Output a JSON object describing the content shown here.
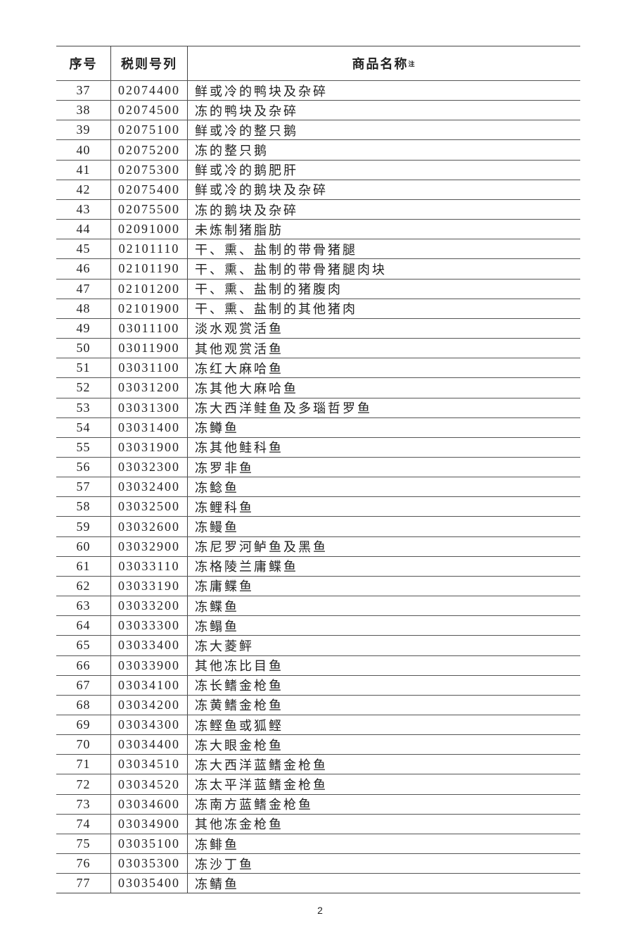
{
  "table": {
    "headers": {
      "index": "序号",
      "tariff_code": "税则号列",
      "product_name": "商品名称",
      "product_name_note": "注"
    },
    "rows": [
      [
        "37",
        "02074400",
        "鲜或冷的鸭块及杂碎"
      ],
      [
        "38",
        "02074500",
        "冻的鸭块及杂碎"
      ],
      [
        "39",
        "02075100",
        "鲜或冷的整只鹅"
      ],
      [
        "40",
        "02075200",
        "冻的整只鹅"
      ],
      [
        "41",
        "02075300",
        "鲜或冷的鹅肥肝"
      ],
      [
        "42",
        "02075400",
        "鲜或冷的鹅块及杂碎"
      ],
      [
        "43",
        "02075500",
        "冻的鹅块及杂碎"
      ],
      [
        "44",
        "02091000",
        "未炼制猪脂肪"
      ],
      [
        "45",
        "02101110",
        "干、熏、盐制的带骨猪腿"
      ],
      [
        "46",
        "02101190",
        "干、熏、盐制的带骨猪腿肉块"
      ],
      [
        "47",
        "02101200",
        "干、熏、盐制的猪腹肉"
      ],
      [
        "48",
        "02101900",
        "干、熏、盐制的其他猪肉"
      ],
      [
        "49",
        "03011100",
        "淡水观赏活鱼"
      ],
      [
        "50",
        "03011900",
        "其他观赏活鱼"
      ],
      [
        "51",
        "03031100",
        "冻红大麻哈鱼"
      ],
      [
        "52",
        "03031200",
        "冻其他大麻哈鱼"
      ],
      [
        "53",
        "03031300",
        "冻大西洋鲑鱼及多瑙哲罗鱼"
      ],
      [
        "54",
        "03031400",
        "冻鳟鱼"
      ],
      [
        "55",
        "03031900",
        "冻其他鲑科鱼"
      ],
      [
        "56",
        "03032300",
        "冻罗非鱼"
      ],
      [
        "57",
        "03032400",
        "冻鲶鱼"
      ],
      [
        "58",
        "03032500",
        "冻鲤科鱼"
      ],
      [
        "59",
        "03032600",
        "冻鳗鱼"
      ],
      [
        "60",
        "03032900",
        "冻尼罗河鲈鱼及黑鱼"
      ],
      [
        "61",
        "03033110",
        "冻格陵兰庸鲽鱼"
      ],
      [
        "62",
        "03033190",
        "冻庸鲽鱼"
      ],
      [
        "63",
        "03033200",
        "冻鲽鱼"
      ],
      [
        "64",
        "03033300",
        "冻鳎鱼"
      ],
      [
        "65",
        "03033400",
        "冻大菱鲆"
      ],
      [
        "66",
        "03033900",
        "其他冻比目鱼"
      ],
      [
        "67",
        "03034100",
        "冻长鳍金枪鱼"
      ],
      [
        "68",
        "03034200",
        "冻黄鳍金枪鱼"
      ],
      [
        "69",
        "03034300",
        "冻鲣鱼或狐鲣"
      ],
      [
        "70",
        "03034400",
        "冻大眼金枪鱼"
      ],
      [
        "71",
        "03034510",
        "冻大西洋蓝鳍金枪鱼"
      ],
      [
        "72",
        "03034520",
        "冻太平洋蓝鳍金枪鱼"
      ],
      [
        "73",
        "03034600",
        "冻南方蓝鳍金枪鱼"
      ],
      [
        "74",
        "03034900",
        "其他冻金枪鱼"
      ],
      [
        "75",
        "03035100",
        "冻鲱鱼"
      ],
      [
        "76",
        "03035300",
        "冻沙丁鱼"
      ],
      [
        "77",
        "03035400",
        "冻鲭鱼"
      ]
    ]
  },
  "footer": {
    "page_number": "2"
  }
}
